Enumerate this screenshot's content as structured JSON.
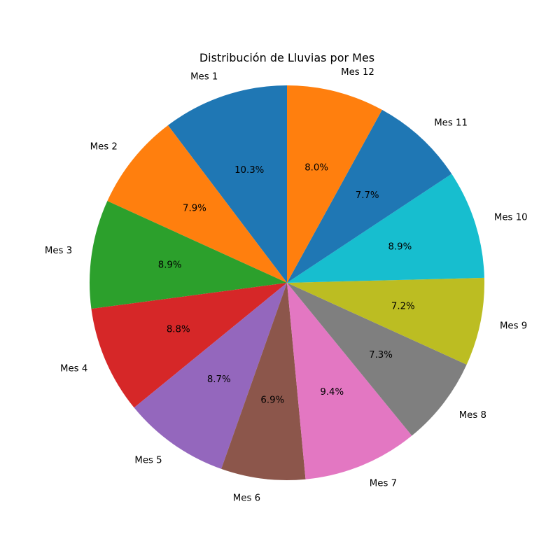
{
  "chart_data": {
    "type": "pie",
    "title": "Distribución de Lluvias por Mes",
    "start_angle_deg": 90,
    "direction": "counterclockwise",
    "slices": [
      {
        "label": "Mes 1",
        "percent": 10.3,
        "pct_label": "10.3%",
        "color": "#1f77b4"
      },
      {
        "label": "Mes 2",
        "percent": 7.9,
        "pct_label": "7.9%",
        "color": "#ff7f0e"
      },
      {
        "label": "Mes 3",
        "percent": 8.9,
        "pct_label": "8.9%",
        "color": "#2ca02c"
      },
      {
        "label": "Mes 4",
        "percent": 8.8,
        "pct_label": "8.8%",
        "color": "#d62728"
      },
      {
        "label": "Mes 5",
        "percent": 8.7,
        "pct_label": "8.7%",
        "color": "#9467bd"
      },
      {
        "label": "Mes 6",
        "percent": 6.9,
        "pct_label": "6.9%",
        "color": "#8c564b"
      },
      {
        "label": "Mes 7",
        "percent": 9.4,
        "pct_label": "9.4%",
        "color": "#e377c2"
      },
      {
        "label": "Mes 8",
        "percent": 7.3,
        "pct_label": "7.3%",
        "color": "#7f7f7f"
      },
      {
        "label": "Mes 9",
        "percent": 7.2,
        "pct_label": "7.2%",
        "color": "#bcbd22"
      },
      {
        "label": "Mes 10",
        "percent": 8.9,
        "pct_label": "8.9%",
        "color": "#17becf"
      },
      {
        "label": "Mes 11",
        "percent": 7.7,
        "pct_label": "7.7%",
        "color": "#1f77b4"
      },
      {
        "label": "Mes 12",
        "percent": 8.0,
        "pct_label": "8.0%",
        "color": "#ff7f0e"
      }
    ]
  }
}
